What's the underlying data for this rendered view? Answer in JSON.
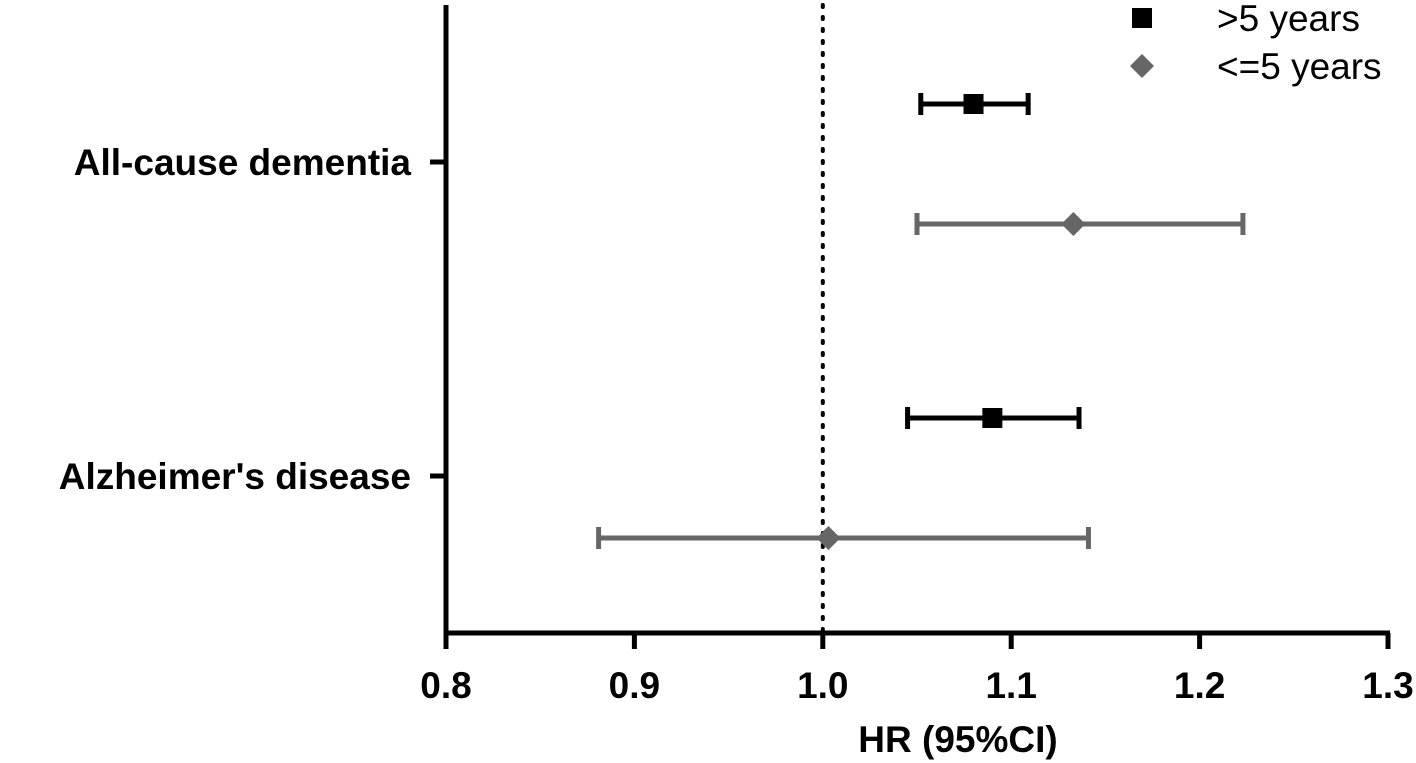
{
  "chart_data": {
    "type": "forest",
    "xlabel": "HR (95%CI)",
    "xlim": [
      0.8,
      1.3
    ],
    "xticks": [
      0.8,
      0.9,
      1.0,
      1.1,
      1.2,
      1.3
    ],
    "xtick_labels": [
      "0.8",
      "0.9",
      "1.0",
      "1.1",
      "1.2",
      "1.3"
    ],
    "reference_line": 1.0,
    "legend_position": "top-right",
    "categories": [
      "All-cause dementia",
      "Alzheimer's disease"
    ],
    "series": [
      {
        "name": ">5 years",
        "marker": "square",
        "color": "#000000",
        "points": [
          {
            "category": "All-cause dementia",
            "hr": 1.08,
            "lower": 1.052,
            "upper": 1.109
          },
          {
            "category": "Alzheimer's disease",
            "hr": 1.09,
            "lower": 1.045,
            "upper": 1.136
          }
        ]
      },
      {
        "name": "<=5 years",
        "marker": "diamond",
        "color": "#666666",
        "points": [
          {
            "category": "All-cause dementia",
            "hr": 1.133,
            "lower": 1.05,
            "upper": 1.223
          },
          {
            "category": "Alzheimer's disease",
            "hr": 1.003,
            "lower": 0.881,
            "upper": 1.141
          }
        ]
      }
    ]
  }
}
